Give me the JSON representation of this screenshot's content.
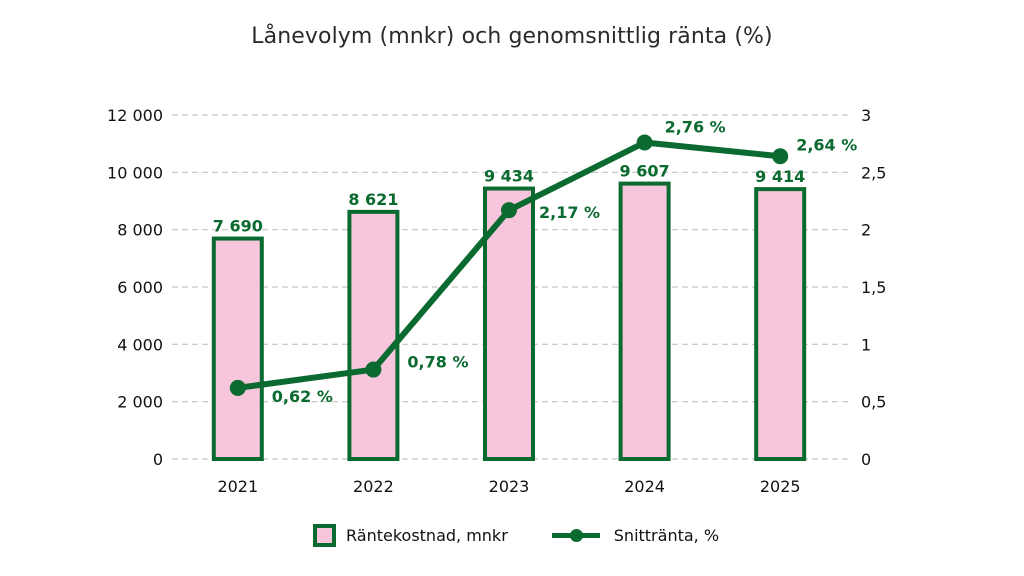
{
  "chart_data": {
    "type": "bar+line",
    "title": "Lånevolym (mnkr) och genomsnittlig ränta (%)",
    "categories": [
      "2021",
      "2022",
      "2023",
      "2024",
      "2025"
    ],
    "series": [
      {
        "name": "Räntekostnad, mnkr",
        "type": "bar",
        "axis": "left",
        "values": [
          7690,
          8621,
          9434,
          9607,
          9414
        ],
        "labels": [
          "7 690",
          "8 621",
          "9 434",
          "9 607",
          "9 414"
        ],
        "fill": "#f7c6dd",
        "stroke": "#0a6a2f"
      },
      {
        "name": "Snittränta, %",
        "type": "line",
        "axis": "right",
        "values": [
          0.62,
          0.78,
          2.17,
          2.76,
          2.64
        ],
        "labels": [
          "0,62 %",
          "0,78 %",
          "2,17 %",
          "2,76 %",
          "2,64 %"
        ],
        "color": "#0a6a2f"
      }
    ],
    "left_axis": {
      "ylim": [
        0,
        12000
      ],
      "ticks": [
        0,
        2000,
        4000,
        6000,
        8000,
        10000,
        12000
      ],
      "tick_labels": [
        "0",
        "2 000",
        "4 000",
        "6 000",
        "8 000",
        "10 000",
        "12 000"
      ]
    },
    "right_axis": {
      "ylim": [
        0,
        3
      ],
      "ticks": [
        0,
        0.5,
        1,
        1.5,
        2,
        2.5,
        3
      ],
      "tick_labels": [
        "0",
        "0,5",
        "1",
        "1,5",
        "2",
        "2,5",
        "3"
      ]
    },
    "xlabel": "",
    "ylabel": "",
    "grid": "horizontal dashed",
    "legend_position": "bottom"
  },
  "legend": {
    "bar_label": "Räntekostnad, mnkr",
    "line_label": "Snittränta, %"
  }
}
